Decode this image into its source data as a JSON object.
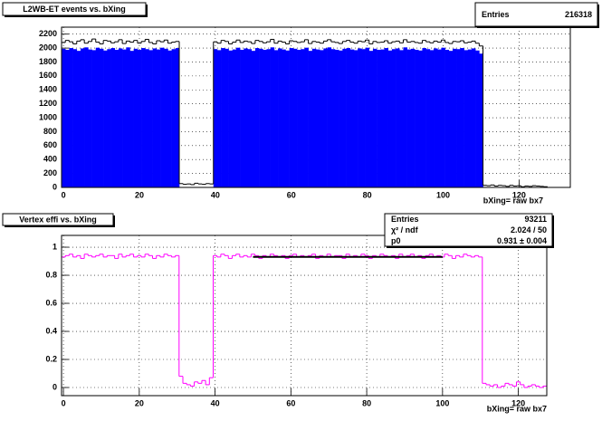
{
  "chart_data": [
    {
      "type": "histogram",
      "title": "L2WB-ET events vs. bXing",
      "stats": [
        {
          "label": "Entries",
          "value": 216318
        }
      ],
      "x_label": "bXing= raw bx7",
      "xlim": [
        -0.5,
        133.5
      ],
      "ylim": [
        0,
        2300
      ],
      "xticks": [
        0,
        20,
        40,
        60,
        80,
        100,
        120
      ],
      "yticks": [
        0,
        200,
        400,
        600,
        800,
        1000,
        1200,
        1400,
        1600,
        1800,
        2000,
        2200
      ],
      "grid": true,
      "bins": [
        -0.5,
        0.5,
        1.5,
        2.5,
        3.5,
        4.5,
        5.5,
        6.5,
        7.5,
        8.5,
        9.5,
        10.5,
        11.5,
        12.5,
        13.5,
        14.5,
        15.5,
        16.5,
        17.5,
        18.5,
        19.5,
        20.5,
        21.5,
        22.5,
        23.5,
        24.5,
        25.5,
        26.5,
        27.5,
        28.5,
        29.5,
        30.5,
        31.5,
        32.5,
        33.5,
        34.5,
        35.5,
        36.5,
        37.5,
        38.5,
        39.5,
        40.5,
        41.5,
        42.5,
        43.5,
        44.5,
        45.5,
        46.5,
        47.5,
        48.5,
        49.5,
        50.5,
        51.5,
        52.5,
        53.5,
        54.5,
        55.5,
        56.5,
        57.5,
        58.5,
        59.5,
        60.5,
        61.5,
        62.5,
        63.5,
        64.5,
        65.5,
        66.5,
        67.5,
        68.5,
        69.5,
        70.5,
        71.5,
        72.5,
        73.5,
        74.5,
        75.5,
        76.5,
        77.5,
        78.5,
        79.5,
        80.5,
        81.5,
        82.5,
        83.5,
        84.5,
        85.5,
        86.5,
        87.5,
        88.5,
        89.5,
        90.5,
        91.5,
        92.5,
        93.5,
        94.5,
        95.5,
        96.5,
        97.5,
        98.5,
        99.5,
        100.5,
        101.5,
        102.5,
        103.5,
        104.5,
        105.5,
        106.5,
        107.5,
        108.5,
        109.5,
        110.5,
        111.5,
        112.5,
        113.5,
        114.5,
        115.5,
        116.5,
        117.5,
        118.5,
        119.5,
        120.5,
        121.5,
        122.5,
        123.5,
        124.5,
        125.5,
        126.5,
        127.5
      ],
      "series": [
        {
          "style": "fill",
          "color": "#0000ff",
          "values": [
            1990,
            1975,
            2000,
            1985,
            1960,
            1995,
            2010,
            1980,
            1970,
            2005,
            1990,
            1965,
            1985,
            2000,
            1975,
            1995,
            1980,
            2010,
            1960,
            1990,
            1975,
            2000,
            1985,
            1970,
            1995,
            1980,
            2005,
            1990,
            1965,
            1985,
            2000,
            0,
            0,
            0,
            0,
            0,
            0,
            0,
            0,
            0,
            1985,
            1970,
            2000,
            1990,
            1965,
            1980,
            2005,
            1975,
            1995,
            1985,
            1960,
            2000,
            1990,
            1975,
            1985,
            2010,
            1970,
            1995,
            1980,
            1965,
            2000,
            1990,
            1975,
            1985,
            2005,
            1960,
            1990,
            1980,
            1970,
            1995,
            2010,
            1985,
            1975,
            1965,
            1990,
            2000,
            1980,
            1970,
            1995,
            1985,
            2005,
            1960,
            1990,
            1975,
            1980,
            2000,
            1965,
            1985,
            1995,
            1970,
            2010,
            1980,
            1990,
            1975,
            1965,
            2000,
            1985,
            1970,
            1995,
            1980,
            2005,
            1975,
            1960,
            1990,
            1985,
            2000,
            1970,
            1980,
            1995,
            1965,
            1920,
            0,
            0,
            0,
            0,
            0,
            0,
            0,
            0,
            0,
            0,
            0,
            0,
            0,
            0,
            0,
            0,
            0
          ]
        },
        {
          "style": "step",
          "color": "#000000",
          "values": [
            2080,
            2110,
            2090,
            2060,
            2100,
            2120,
            2070,
            2095,
            2130,
            2085,
            2060,
            2110,
            2100,
            2075,
            2090,
            2120,
            2065,
            2100,
            2085,
            2110,
            2070,
            2095,
            2125,
            2080,
            2060,
            2105,
            2090,
            2115,
            2070,
            2085,
            2095,
            55,
            45,
            50,
            40,
            60,
            50,
            45,
            55,
            50,
            2090,
            2070,
            2110,
            2095,
            2060,
            2085,
            2115,
            2080,
            2100,
            2090,
            2065,
            2110,
            2095,
            2075,
            2090,
            2125,
            2070,
            2100,
            2085,
            2060,
            2105,
            2095,
            2080,
            2090,
            2120,
            2065,
            2095,
            2085,
            2070,
            2100,
            2120,
            2090,
            2080,
            2065,
            2095,
            2110,
            2085,
            2070,
            2100,
            2090,
            2115,
            2060,
            2095,
            2080,
            2085,
            2105,
            2070,
            2090,
            2100,
            2075,
            2120,
            2085,
            2095,
            2080,
            2070,
            2110,
            2090,
            2075,
            2100,
            2085,
            2115,
            2080,
            2065,
            2095,
            2090,
            2105,
            2075,
            2085,
            2100,
            2070,
            2030,
            30,
            25,
            35,
            20,
            30,
            25,
            15,
            30,
            20,
            25,
            10,
            20,
            15,
            25,
            20,
            15,
            10
          ]
        }
      ]
    },
    {
      "type": "histogram",
      "title": "Vertex effi vs. bXing",
      "stats": [
        {
          "label": "Entries",
          "value": 93211
        },
        {
          "label": "χ² / ndf",
          "value": "2.024 / 50"
        },
        {
          "label": "p0",
          "value": "0.931 ± 0.004"
        }
      ],
      "x_label": "bXing= raw bx7",
      "xlim": [
        -0.5,
        127.5
      ],
      "ylim": [
        -0.058,
        1.084
      ],
      "xticks": [
        0,
        20,
        40,
        60,
        80,
        100,
        120
      ],
      "yticks": [
        0,
        0.2,
        0.4,
        0.6,
        0.8,
        1
      ],
      "grid": true,
      "fit": {
        "p0": 0.931,
        "range": [
          50,
          100
        ],
        "color": "#000000"
      },
      "bins": [
        -0.5,
        0.5,
        1.5,
        2.5,
        3.5,
        4.5,
        5.5,
        6.5,
        7.5,
        8.5,
        9.5,
        10.5,
        11.5,
        12.5,
        13.5,
        14.5,
        15.5,
        16.5,
        17.5,
        18.5,
        19.5,
        20.5,
        21.5,
        22.5,
        23.5,
        24.5,
        25.5,
        26.5,
        27.5,
        28.5,
        29.5,
        30.5,
        31.5,
        32.5,
        33.5,
        34.5,
        35.5,
        36.5,
        37.5,
        38.5,
        39.5,
        40.5,
        41.5,
        42.5,
        43.5,
        44.5,
        45.5,
        46.5,
        47.5,
        48.5,
        49.5,
        50.5,
        51.5,
        52.5,
        53.5,
        54.5,
        55.5,
        56.5,
        57.5,
        58.5,
        59.5,
        60.5,
        61.5,
        62.5,
        63.5,
        64.5,
        65.5,
        66.5,
        67.5,
        68.5,
        69.5,
        70.5,
        71.5,
        72.5,
        73.5,
        74.5,
        75.5,
        76.5,
        77.5,
        78.5,
        79.5,
        80.5,
        81.5,
        82.5,
        83.5,
        84.5,
        85.5,
        86.5,
        87.5,
        88.5,
        89.5,
        90.5,
        91.5,
        92.5,
        93.5,
        94.5,
        95.5,
        96.5,
        97.5,
        98.5,
        99.5,
        100.5,
        101.5,
        102.5,
        103.5,
        104.5,
        105.5,
        106.5,
        107.5,
        108.5,
        109.5,
        110.5,
        111.5,
        112.5,
        113.5,
        114.5,
        115.5,
        116.5,
        117.5,
        118.5,
        119.5,
        120.5,
        121.5,
        122.5,
        123.5,
        124.5,
        125.5,
        126.5,
        127.5
      ],
      "series": [
        {
          "style": "step",
          "color": "#ff00ff",
          "values": [
            0.93,
            0.94,
            0.95,
            0.93,
            0.94,
            0.92,
            0.95,
            0.94,
            0.93,
            0.94,
            0.95,
            0.93,
            0.94,
            0.94,
            0.92,
            0.95,
            0.93,
            0.94,
            0.95,
            0.93,
            0.94,
            0.93,
            0.95,
            0.94,
            0.92,
            0.94,
            0.93,
            0.95,
            0.94,
            0.93,
            0.94,
            0.08,
            0.03,
            0.02,
            0.01,
            0.04,
            0.03,
            0.05,
            0.02,
            0.07,
            0.94,
            0.93,
            0.95,
            0.94,
            0.92,
            0.94,
            0.95,
            0.93,
            0.94,
            0.93,
            0.95,
            0.94,
            0.92,
            0.94,
            0.93,
            0.95,
            0.94,
            0.93,
            0.94,
            0.92,
            0.94,
            0.95,
            0.93,
            0.94,
            0.93,
            0.94,
            0.95,
            0.92,
            0.94,
            0.93,
            0.95,
            0.93,
            0.94,
            0.94,
            0.92,
            0.95,
            0.93,
            0.94,
            0.93,
            0.95,
            0.94,
            0.92,
            0.94,
            0.93,
            0.95,
            0.94,
            0.93,
            0.94,
            0.92,
            0.95,
            0.93,
            0.94,
            0.95,
            0.93,
            0.94,
            0.92,
            0.94,
            0.95,
            0.93,
            0.94,
            0.93,
            0.95,
            0.94,
            0.92,
            0.94,
            0.93,
            0.95,
            0.94,
            0.93,
            0.94,
            0.93,
            0.03,
            0.02,
            0.01,
            0.02,
            0,
            0.01,
            0.03,
            0.02,
            0.01,
            0.04,
            0.02,
            0,
            0.01,
            0.02,
            0.01,
            0,
            0.01
          ]
        }
      ]
    }
  ]
}
